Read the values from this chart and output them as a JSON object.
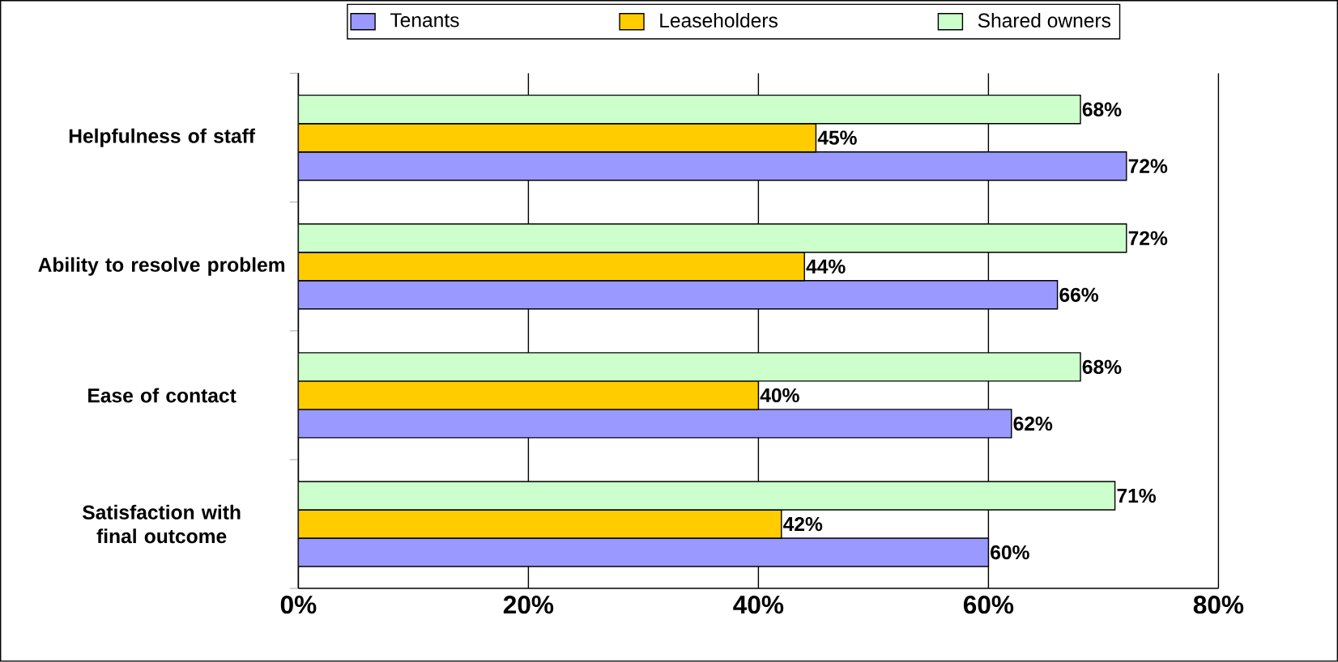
{
  "chart_data": {
    "type": "bar",
    "orientation": "horizontal",
    "categories": [
      "Helpfulness of staff",
      "Ability to resolve problem",
      "Ease of contact",
      "Satisfaction with final outcome"
    ],
    "series": [
      {
        "name": "Tenants",
        "color": "#9999ff",
        "values": [
          72,
          66,
          62,
          60
        ],
        "value_labels": [
          "72%",
          "66%",
          "62%",
          "60%"
        ]
      },
      {
        "name": "Leaseholders",
        "color": "#ffcc00",
        "values": [
          45,
          44,
          40,
          42
        ],
        "value_labels": [
          "45%",
          "44%",
          "40%",
          "42%"
        ]
      },
      {
        "name": "Shared owners",
        "color": "#ccffcc",
        "values": [
          68,
          72,
          68,
          71
        ],
        "value_labels": [
          "68%",
          "72%",
          "68%",
          "71%"
        ]
      }
    ],
    "xlim": [
      0,
      80
    ],
    "xticks": [
      {
        "value": 0,
        "label": "0%"
      },
      {
        "value": 20,
        "label": "20%"
      },
      {
        "value": 40,
        "label": "40%"
      },
      {
        "value": 60,
        "label": "60%"
      },
      {
        "value": 80,
        "label": "80%"
      }
    ],
    "grid": "x",
    "legend": "top"
  }
}
